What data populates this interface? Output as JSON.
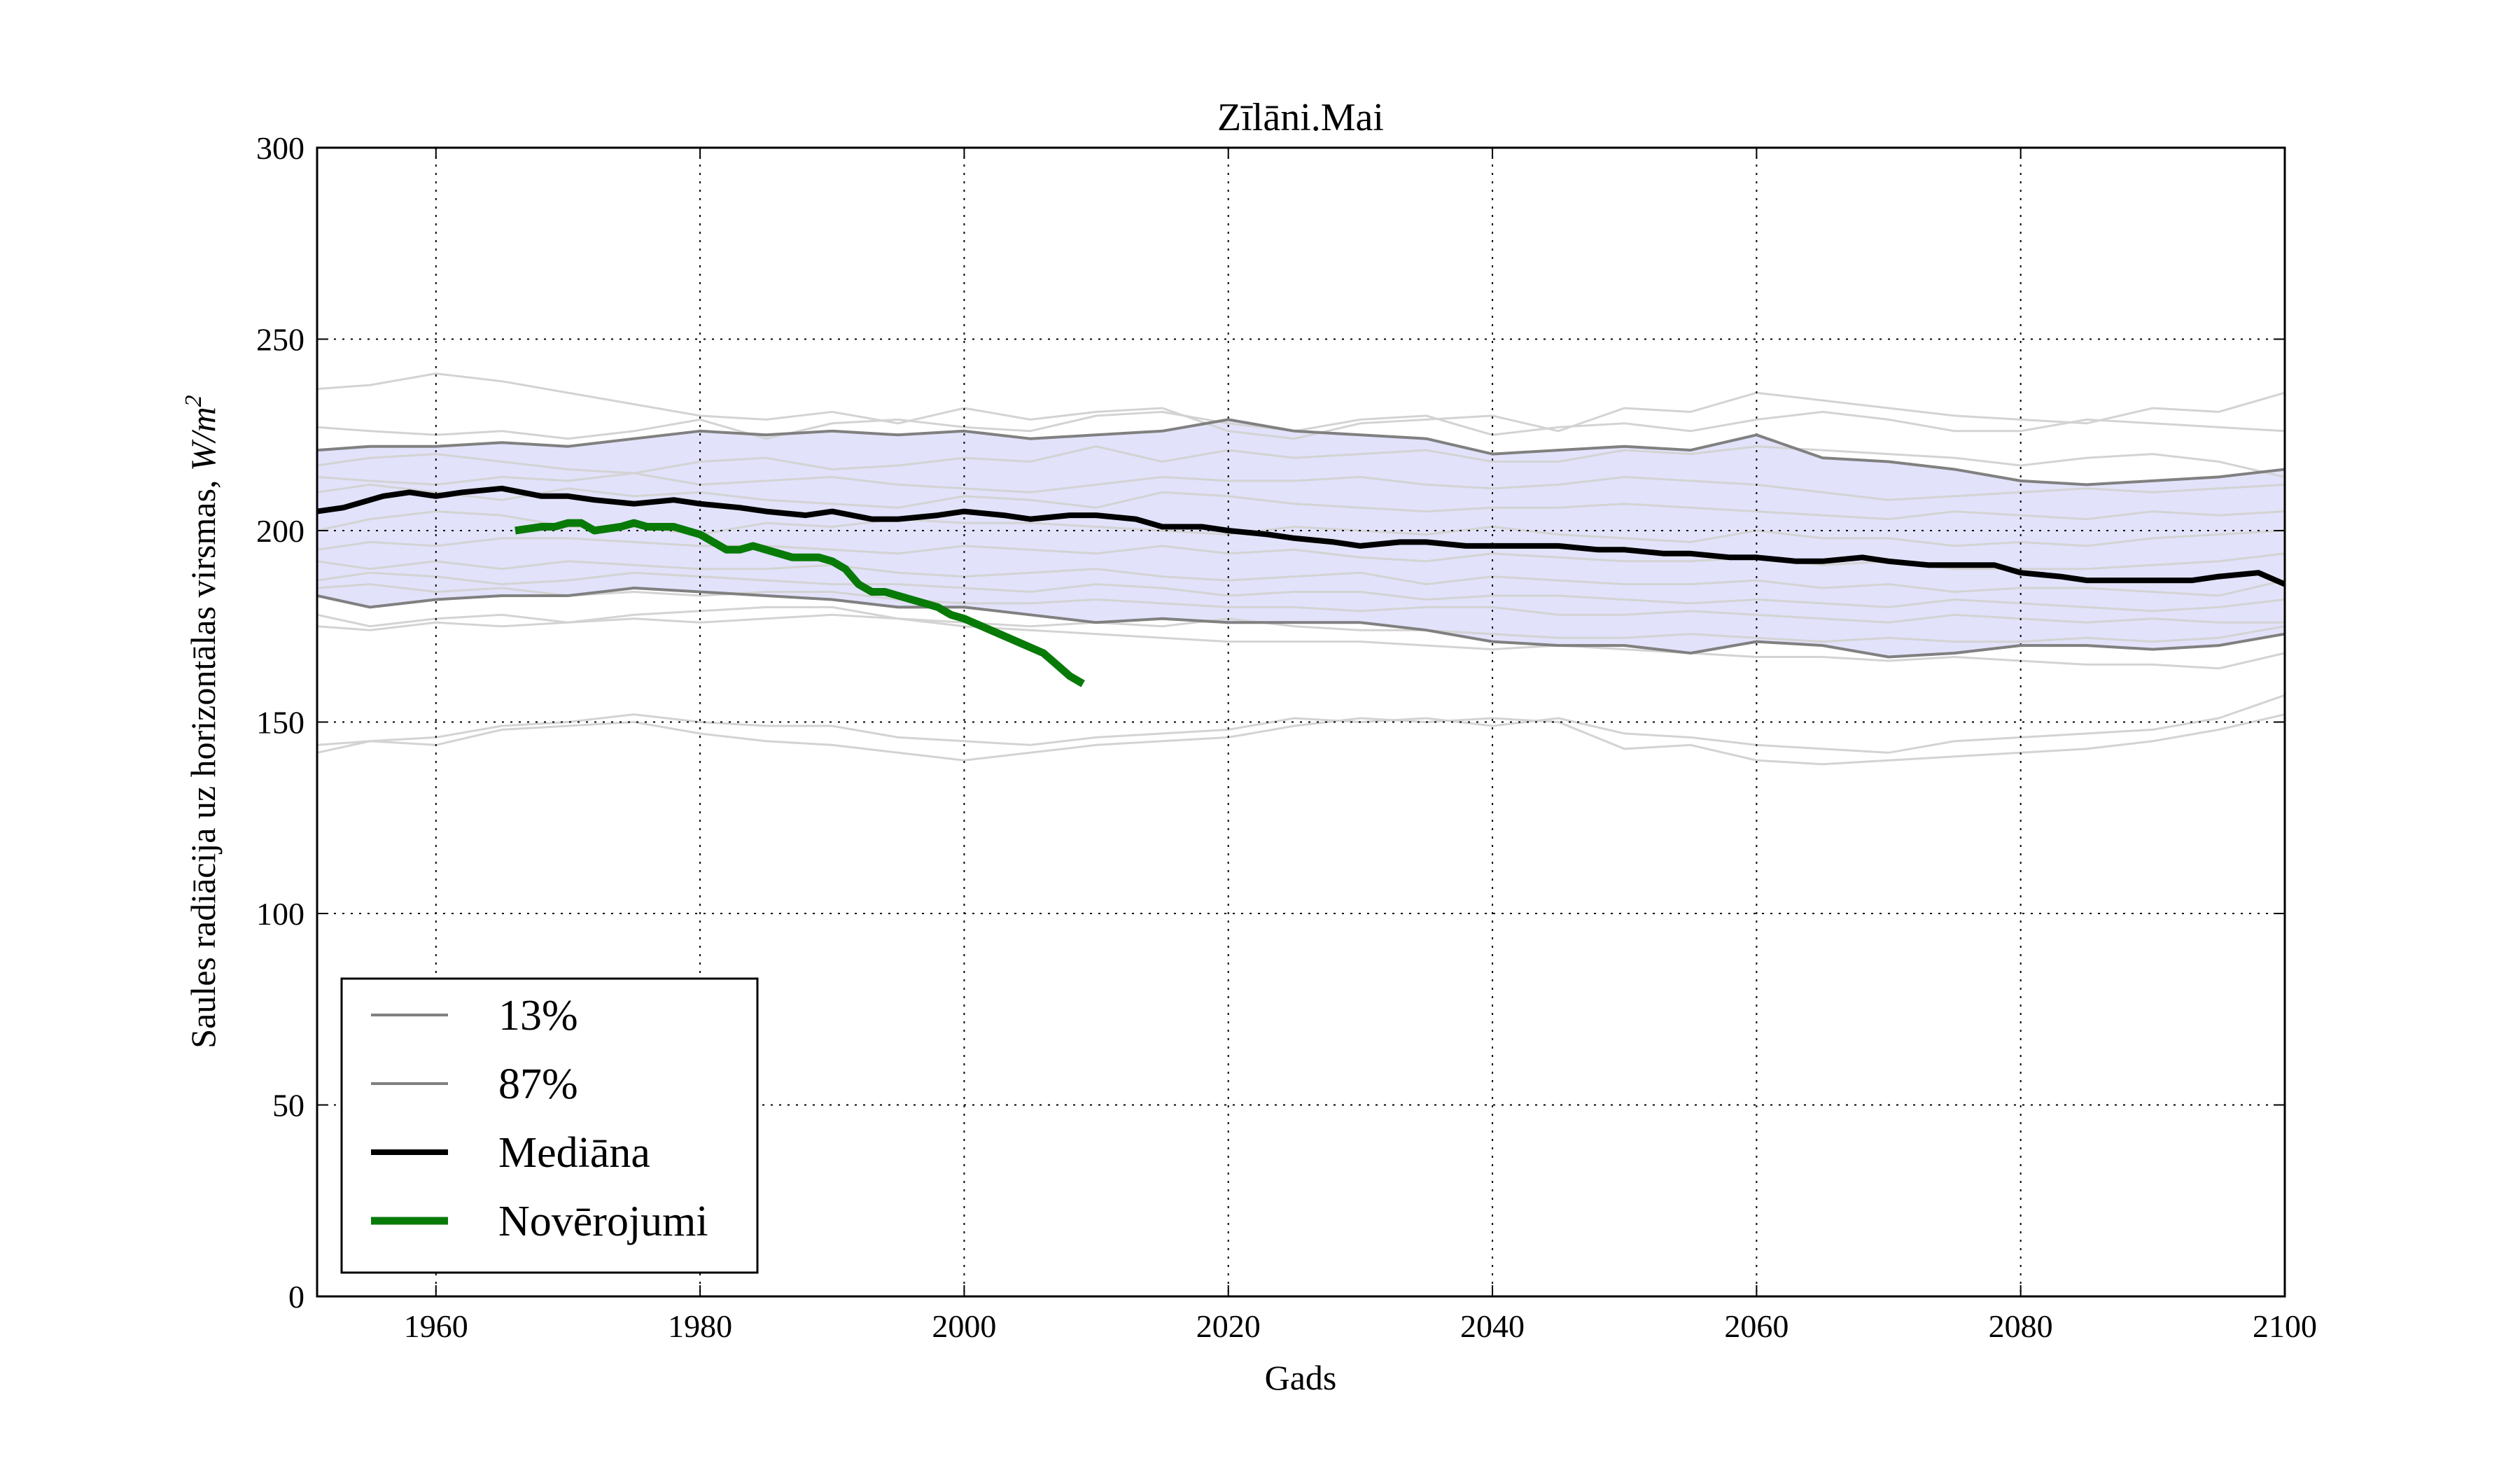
{
  "chart_data": {
    "type": "line",
    "title": "Zīlāni.Mai",
    "xlabel": "Gads",
    "ylabel_text": "Saules radiācija uz horizontālas virsmas, ",
    "ylabel_unit": "W/m",
    "ylabel_unit_sup": "2",
    "xlim": [
      1951,
      2100
    ],
    "ylim": [
      0,
      300
    ],
    "xticks": [
      1960,
      1980,
      2000,
      2020,
      2040,
      2060,
      2080,
      2100
    ],
    "yticks": [
      0,
      50,
      100,
      150,
      200,
      250,
      300
    ],
    "grid": true,
    "legend_position": "lower-left",
    "band_color": "#e2e2fb",
    "colors": {
      "p13": "#808080",
      "p87": "#808080",
      "median": "#000000",
      "observed": "#087a08",
      "ensemble": "#d3d3d3"
    },
    "legend": [
      {
        "label": "13%",
        "key": "p13"
      },
      {
        "label": "87%",
        "key": "p87"
      },
      {
        "label": "Mediāna",
        "key": "median"
      },
      {
        "label": "Novērojumi",
        "key": "observed"
      }
    ],
    "series": [
      {
        "name": "87%",
        "key": "p87",
        "x": [
          1951,
          1955,
          1960,
          1965,
          1970,
          1975,
          1980,
          1985,
          1990,
          1995,
          2000,
          2005,
          2010,
          2015,
          2020,
          2025,
          2030,
          2035,
          2040,
          2045,
          2050,
          2055,
          2060,
          2065,
          2070,
          2075,
          2080,
          2085,
          2090,
          2095,
          2100
        ],
        "y": [
          221,
          222,
          222,
          223,
          222,
          224,
          226,
          225,
          226,
          225,
          226,
          224,
          225,
          226,
          229,
          226,
          225,
          224,
          220,
          221,
          222,
          221,
          225,
          219,
          218,
          216,
          213,
          212,
          213,
          214,
          216
        ]
      },
      {
        "name": "13%",
        "key": "p13",
        "x": [
          1951,
          1955,
          1960,
          1965,
          1970,
          1975,
          1980,
          1985,
          1990,
          1995,
          2000,
          2005,
          2010,
          2015,
          2020,
          2025,
          2030,
          2035,
          2040,
          2045,
          2050,
          2055,
          2060,
          2065,
          2070,
          2075,
          2080,
          2085,
          2090,
          2095,
          2100
        ],
        "y": [
          183,
          180,
          182,
          183,
          183,
          185,
          184,
          183,
          182,
          180,
          180,
          178,
          176,
          177,
          176,
          176,
          176,
          174,
          171,
          170,
          170,
          168,
          171,
          170,
          167,
          168,
          170,
          170,
          169,
          170,
          173
        ]
      },
      {
        "name": "Mediāna",
        "key": "median",
        "x": [
          1951,
          1953,
          1956,
          1958,
          1960,
          1962,
          1965,
          1968,
          1970,
          1972,
          1975,
          1978,
          1980,
          1983,
          1985,
          1988,
          1990,
          1993,
          1995,
          1998,
          2000,
          2003,
          2005,
          2008,
          2010,
          2013,
          2015,
          2018,
          2020,
          2023,
          2025,
          2028,
          2030,
          2033,
          2035,
          2038,
          2040,
          2043,
          2045,
          2048,
          2050,
          2053,
          2055,
          2058,
          2060,
          2063,
          2065,
          2068,
          2070,
          2073,
          2075,
          2078,
          2080,
          2083,
          2085,
          2088,
          2090,
          2093,
          2095,
          2098,
          2100
        ],
        "y": [
          205,
          206,
          209,
          210,
          209,
          210,
          211,
          209,
          209,
          208,
          207,
          208,
          207,
          206,
          205,
          204,
          205,
          203,
          203,
          204,
          205,
          204,
          203,
          204,
          204,
          203,
          201,
          201,
          200,
          199,
          198,
          197,
          196,
          197,
          197,
          196,
          196,
          196,
          196,
          195,
          195,
          194,
          194,
          193,
          193,
          192,
          192,
          193,
          192,
          191,
          191,
          191,
          189,
          188,
          187,
          187,
          187,
          187,
          188,
          189,
          186
        ]
      },
      {
        "name": "Novērojumi",
        "key": "observed",
        "x": [
          1966,
          1968,
          1969,
          1970,
          1971,
          1972,
          1974,
          1975,
          1976,
          1977,
          1978,
          1979,
          1980,
          1981,
          1982,
          1983,
          1984,
          1985,
          1986,
          1987,
          1988,
          1989,
          1990,
          1991,
          1992,
          1993,
          1994,
          1995,
          1996,
          1997,
          1998,
          1999,
          2000,
          2002,
          2004,
          2006,
          2007,
          2008,
          2009
        ],
        "y": [
          200,
          201,
          201,
          202,
          202,
          200,
          201,
          202,
          201,
          201,
          201,
          200,
          199,
          197,
          195,
          195,
          196,
          195,
          194,
          193,
          193,
          193,
          192,
          190,
          186,
          184,
          184,
          183,
          182,
          181,
          180,
          178,
          177,
          174,
          171,
          168,
          165,
          162,
          160
        ]
      }
    ],
    "ensemble_x": [
      1951,
      1955,
      1960,
      1965,
      1970,
      1975,
      1980,
      1985,
      1990,
      1995,
      2000,
      2005,
      2010,
      2015,
      2020,
      2025,
      2030,
      2035,
      2040,
      2045,
      2050,
      2055,
      2060,
      2065,
      2070,
      2075,
      2080,
      2085,
      2090,
      2095,
      2100
    ],
    "ensemble": [
      [
        237,
        238,
        241,
        239,
        236,
        233,
        230,
        229,
        231,
        228,
        232,
        229,
        231,
        232,
        226,
        224,
        228,
        229,
        230,
        226,
        232,
        231,
        236,
        234,
        232,
        230,
        229,
        228,
        232,
        231,
        236
      ],
      [
        227,
        226,
        225,
        226,
        224,
        226,
        229,
        224,
        228,
        229,
        227,
        226,
        230,
        231,
        228,
        226,
        229,
        230,
        225,
        227,
        228,
        226,
        229,
        231,
        229,
        226,
        226,
        229,
        228,
        227,
        226
      ],
      [
        217,
        219,
        220,
        218,
        216,
        215,
        218,
        219,
        216,
        217,
        219,
        218,
        222,
        218,
        221,
        219,
        220,
        221,
        218,
        218,
        221,
        220,
        222,
        221,
        220,
        219,
        217,
        219,
        220,
        218,
        214
      ],
      [
        214,
        213,
        212,
        214,
        213,
        215,
        212,
        213,
        214,
        212,
        211,
        210,
        212,
        214,
        213,
        213,
        214,
        212,
        211,
        212,
        214,
        213,
        212,
        210,
        208,
        209,
        210,
        211,
        210,
        211,
        212
      ],
      [
        210,
        212,
        210,
        208,
        211,
        209,
        210,
        208,
        207,
        206,
        209,
        208,
        206,
        210,
        209,
        207,
        206,
        205,
        206,
        206,
        207,
        206,
        205,
        204,
        203,
        205,
        204,
        203,
        205,
        204,
        205
      ],
      [
        200,
        203,
        205,
        204,
        201,
        201,
        199,
        202,
        201,
        203,
        202,
        202,
        201,
        200,
        199,
        201,
        200,
        199,
        201,
        199,
        198,
        197,
        200,
        198,
        198,
        196,
        197,
        196,
        198,
        199,
        200
      ],
      [
        195,
        197,
        196,
        198,
        198,
        197,
        196,
        196,
        195,
        194,
        196,
        195,
        194,
        196,
        194,
        195,
        193,
        192,
        194,
        193,
        192,
        192,
        193,
        191,
        192,
        190,
        190,
        190,
        191,
        192,
        194
      ],
      [
        192,
        190,
        192,
        190,
        192,
        191,
        190,
        190,
        191,
        189,
        188,
        189,
        190,
        188,
        187,
        188,
        189,
        186,
        188,
        187,
        186,
        186,
        187,
        185,
        186,
        184,
        185,
        185,
        184,
        183,
        187
      ],
      [
        187,
        189,
        188,
        186,
        187,
        189,
        188,
        187,
        186,
        186,
        185,
        184,
        186,
        185,
        183,
        184,
        184,
        182,
        183,
        183,
        182,
        181,
        182,
        181,
        180,
        182,
        181,
        180,
        179,
        180,
        182
      ],
      [
        185,
        186,
        184,
        185,
        183,
        184,
        183,
        184,
        184,
        182,
        181,
        181,
        182,
        181,
        180,
        180,
        179,
        180,
        180,
        178,
        178,
        179,
        178,
        177,
        176,
        178,
        177,
        176,
        177,
        176,
        176
      ],
      [
        178,
        175,
        177,
        178,
        176,
        178,
        179,
        180,
        180,
        177,
        176,
        175,
        176,
        175,
        177,
        175,
        174,
        174,
        173,
        172,
        172,
        173,
        172,
        171,
        172,
        171,
        171,
        172,
        171,
        172,
        175
      ],
      [
        175,
        174,
        176,
        175,
        176,
        177,
        176,
        177,
        178,
        177,
        175,
        174,
        173,
        172,
        171,
        171,
        171,
        170,
        169,
        170,
        169,
        168,
        167,
        167,
        166,
        167,
        166,
        165,
        165,
        164,
        168
      ],
      [
        142,
        145,
        144,
        148,
        149,
        150,
        147,
        145,
        144,
        142,
        140,
        142,
        144,
        145,
        146,
        149,
        151,
        150,
        151,
        150,
        143,
        144,
        140,
        139,
        140,
        141,
        142,
        143,
        145,
        148,
        152
      ],
      [
        144,
        145,
        146,
        149,
        150,
        152,
        150,
        149,
        149,
        146,
        145,
        144,
        146,
        147,
        148,
        151,
        150,
        151,
        149,
        151,
        147,
        146,
        144,
        143,
        142,
        145,
        146,
        147,
        148,
        151,
        157
      ]
    ]
  }
}
